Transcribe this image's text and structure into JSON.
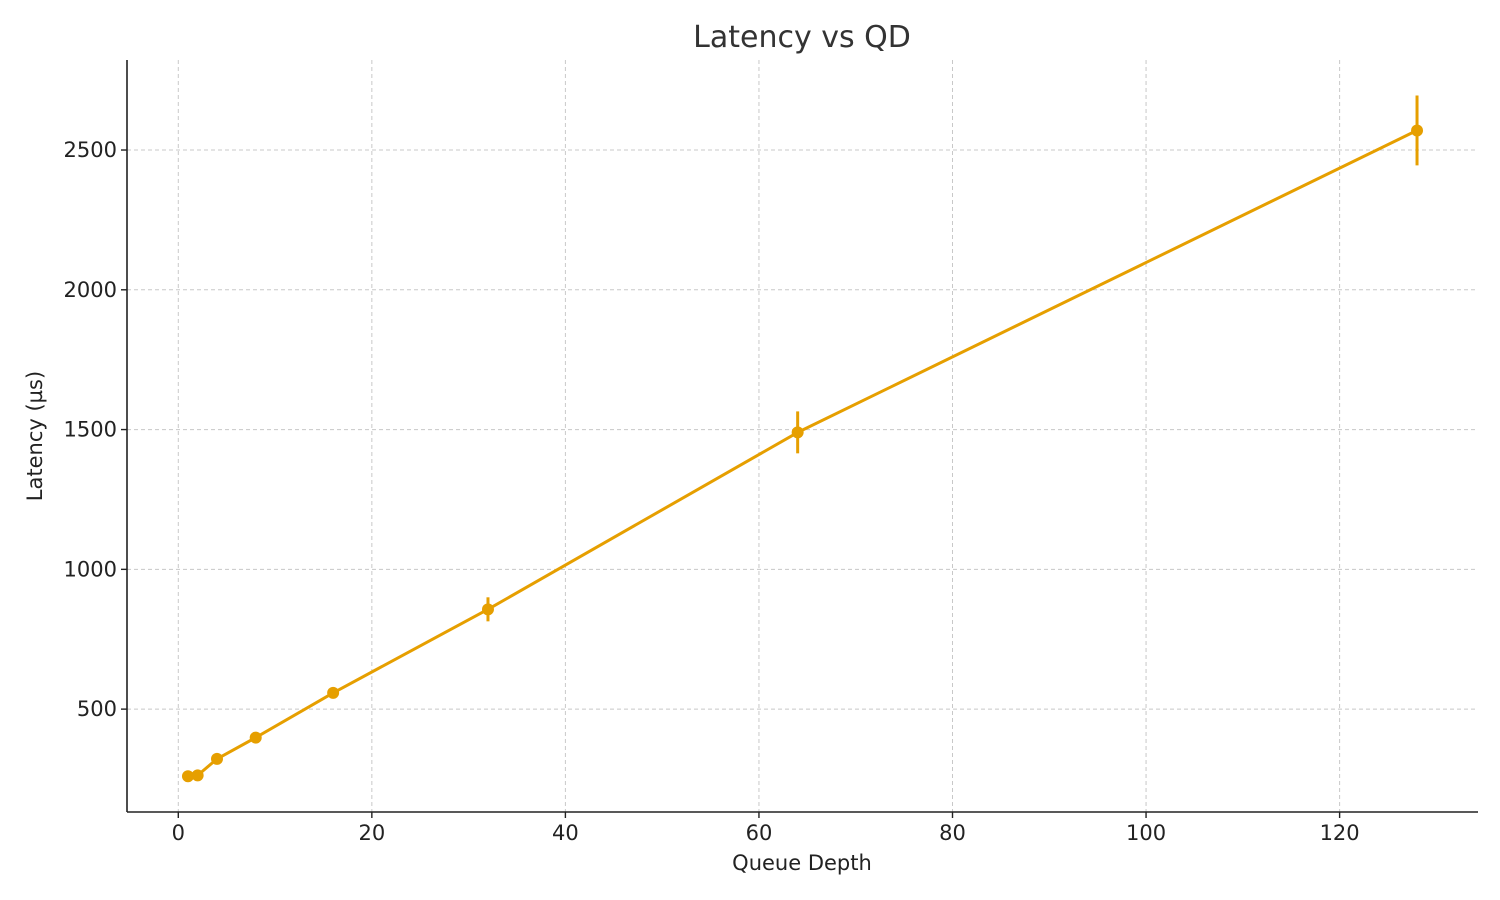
{
  "chart_data": {
    "type": "line",
    "title": "Latency vs QD",
    "xlabel": "Queue Depth",
    "ylabel": "Latency (µs)",
    "xlim": [
      -5.3,
      134.3
    ],
    "ylim": [
      132,
      2822
    ],
    "x_ticks": [
      0,
      20,
      40,
      60,
      80,
      100,
      120
    ],
    "y_ticks": [
      500,
      1000,
      1500,
      2000,
      2500
    ],
    "x_tick_labels": [
      "0",
      "20",
      "40",
      "60",
      "80",
      "100",
      "120"
    ],
    "y_tick_labels": [
      "500",
      "1000",
      "1500",
      "2000",
      "2500"
    ],
    "grid": true,
    "color": "#e69f00",
    "series": [
      {
        "x": [
          1,
          2,
          4,
          8,
          16,
          32,
          64,
          128
        ],
        "y": [
          260,
          263,
          322,
          398,
          558,
          857,
          1490,
          2570
        ],
        "error": [
          5,
          6,
          8,
          10,
          20,
          43,
          75,
          125
        ]
      }
    ]
  }
}
